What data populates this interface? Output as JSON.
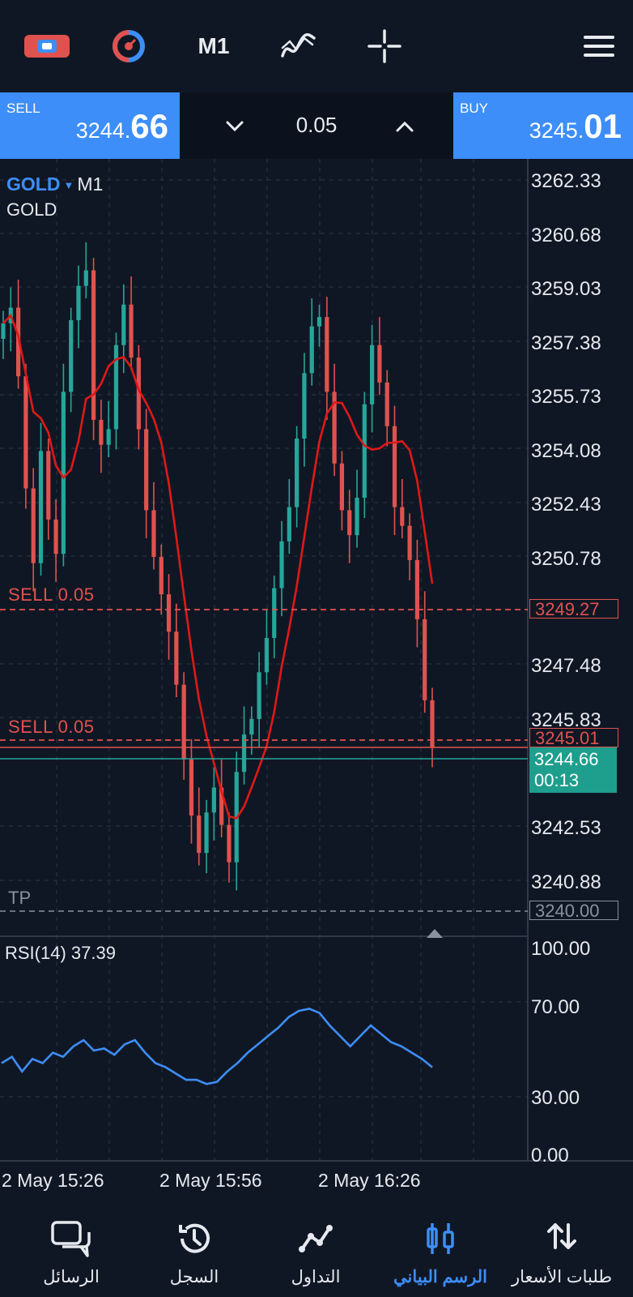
{
  "toolbar": {
    "timeframe": "M1",
    "icons": [
      "trade-ticket-icon",
      "one-click-icon",
      "indicators-icon",
      "crosshair-icon",
      "menu-icon"
    ]
  },
  "trade": {
    "sell_label": "SELL",
    "sell_price_main": "3244.",
    "sell_price_big": "66",
    "buy_label": "BUY",
    "buy_price_main": "3245.",
    "buy_price_big": "01",
    "volume": "0.05"
  },
  "chart": {
    "symbol": "GOLD",
    "timeframe": "M1",
    "description": "GOLD",
    "price_ticks": [
      "3262.33",
      "3260.68",
      "3259.03",
      "3257.38",
      "3255.73",
      "3254.08",
      "3252.43",
      "3250.78",
      "3247.48",
      "3245.83",
      "3242.53",
      "3240.88"
    ],
    "order_lines": [
      {
        "label": "SELL 0.05",
        "price": "3249.27"
      },
      {
        "label": "SELL 0.05",
        "price": "3245.01"
      }
    ],
    "tp_label": "TP",
    "tp_price": "3240.00",
    "bid_price": "3244.66",
    "countdown": "00:13",
    "time_labels": [
      "2 May 15:26",
      "2 May 15:56",
      "2 May 16:26"
    ],
    "colors": {
      "bull": "#26a69a",
      "bear": "#e0524f",
      "ma": "#e01818",
      "rsi": "#3d8ef8",
      "accent": "#3d8ef8",
      "background": "#101724"
    }
  },
  "rsi": {
    "label": "RSI(14) 37.39",
    "ticks": [
      "100.00",
      "70.00",
      "30.00",
      "0.00"
    ]
  },
  "nav": {
    "items": [
      {
        "label": "الرسائل",
        "icon": "messages-icon"
      },
      {
        "label": "السجل",
        "icon": "history-icon"
      },
      {
        "label": "التداول",
        "icon": "trade-icon"
      },
      {
        "label": "الرسم البياني",
        "icon": "chart-icon",
        "active": true
      },
      {
        "label": "طلبات الأسعار",
        "icon": "quotes-icon"
      }
    ]
  },
  "chart_data": {
    "type": "candlestick",
    "symbol": "GOLD",
    "timeframe": "M1",
    "ylim": [
      3239.9,
      3262.9
    ],
    "close_approx": [
      3258.3,
      3258.8,
      3256.6,
      3253.0,
      3250.6,
      3254.2,
      3252.0,
      3250.9,
      3256.1,
      3258.4,
      3259.5,
      3260.0,
      3255.2,
      3254.4,
      3254.9,
      3257.6,
      3258.9,
      3257.2,
      3254.9,
      3252.3,
      3250.8,
      3249.6,
      3248.4,
      3246.7,
      3244.3,
      3242.5,
      3241.3,
      3242.6,
      3243.4,
      3242.2,
      3241.0,
      3243.9,
      3245.1,
      3245.6,
      3247.1,
      3248.2,
      3249.8,
      3251.3,
      3252.4,
      3254.6,
      3256.7,
      3258.2,
      3258.5,
      3256.1,
      3253.8,
      3252.3,
      3251.5,
      3252.7,
      3255.7,
      3257.6,
      3256.4,
      3255.0,
      3252.4,
      3251.8,
      3250.7,
      3248.8,
      3246.2,
      3244.7
    ],
    "rsi_ylim": [
      0,
      100
    ],
    "rsi_approx": [
      44,
      47,
      40,
      46,
      44,
      49,
      47,
      52,
      55,
      50,
      51,
      48,
      53,
      55,
      49,
      44,
      42,
      39,
      36,
      36,
      34,
      35,
      40,
      44,
      49,
      53,
      57,
      61,
      66,
      69,
      70,
      68,
      62,
      57,
      52,
      57,
      62,
      58,
      54,
      52,
      49,
      46,
      42
    ]
  }
}
